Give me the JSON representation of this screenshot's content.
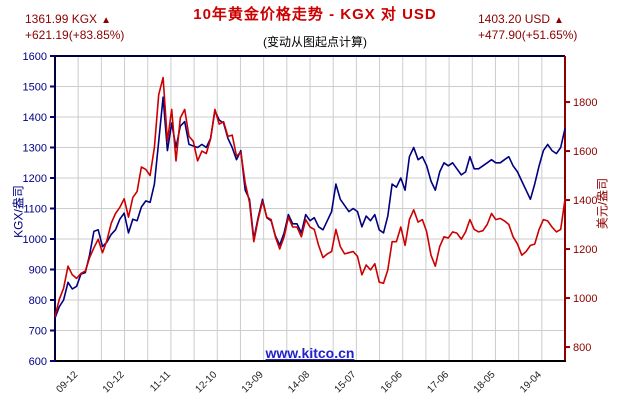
{
  "header": {
    "title": "10年黄金价格走势 - KGX 对 USD",
    "subtitle": "(变动从图起点计算)",
    "left_quote": {
      "price": "1361.99 KGX",
      "arrow": "▲",
      "change": "+621.19(+83.85%)"
    },
    "right_quote": {
      "price": "1403.20 USD",
      "arrow": "▲",
      "change": "+477.90(+51.65%)"
    }
  },
  "watermark": {
    "text": "www.kitco.cn"
  },
  "colors": {
    "title": "#cc0000",
    "quote_text": "#8b0000",
    "grid": "#cccccc",
    "frame_left_top": "#000040",
    "frame_right": "#8b0000",
    "frame_bottom": "#000000",
    "x_label": "#222222",
    "watermark": "#2222cc"
  },
  "chart_data": {
    "type": "line",
    "title": "10年黄金价格走势 - KGX 对 USD",
    "subtitle": "(变动从图起点计算)",
    "grid": true,
    "legend_position": "none",
    "x_tick_labels": [
      "09-12",
      "10-12",
      "11-11",
      "12-10",
      "13-09",
      "14-08",
      "15-07",
      "16-06",
      "17-06",
      "18-05",
      "19-04"
    ],
    "left_axis": {
      "label": "KGX/盎司",
      "min": 600,
      "max": 1600,
      "ticks": [
        600,
        700,
        800,
        900,
        1000,
        1100,
        1200,
        1300,
        1400,
        1500,
        1600
      ],
      "color": "#000080"
    },
    "right_axis": {
      "label": "美元/盎司",
      "min": 743,
      "max": 1988,
      "ticks": [
        800,
        1000,
        1200,
        1400,
        1600,
        1800
      ],
      "color": "#8b0000"
    },
    "series": [
      {
        "name": "KGX",
        "axis": "left",
        "color": "#000080",
        "start_value": 740.8,
        "end_value": 1361.99,
        "change": "+621.19(+83.85%)",
        "values": [
          740.8,
          778,
          800,
          858,
          836,
          845,
          885,
          890,
          948,
          1025,
          1030,
          975,
          990,
          1015,
          1030,
          1065,
          1085,
          1020,
          1065,
          1060,
          1105,
          1125,
          1120,
          1180,
          1320,
          1465,
          1290,
          1380,
          1300,
          1370,
          1385,
          1310,
          1305,
          1300,
          1310,
          1300,
          1330,
          1420,
          1390,
          1380,
          1330,
          1300,
          1260,
          1290,
          1160,
          1130,
          1000,
          1070,
          1130,
          1070,
          1060,
          1010,
          980,
          1020,
          1080,
          1050,
          1050,
          1020,
          1080,
          1060,
          1070,
          1040,
          1030,
          1060,
          1090,
          1180,
          1130,
          1110,
          1090,
          1100,
          1090,
          1040,
          1075,
          1060,
          1080,
          1030,
          1020,
          1075,
          1180,
          1170,
          1200,
          1160,
          1270,
          1300,
          1260,
          1270,
          1240,
          1190,
          1160,
          1220,
          1250,
          1240,
          1250,
          1230,
          1210,
          1220,
          1270,
          1230,
          1230,
          1240,
          1250,
          1260,
          1250,
          1250,
          1260,
          1270,
          1240,
          1220,
          1190,
          1160,
          1130,
          1180,
          1240,
          1290,
          1310,
          1290,
          1280,
          1300,
          1361.99
        ]
      },
      {
        "name": "USD",
        "axis": "right",
        "color": "#cc0000",
        "start_value": 925.3,
        "end_value": 1403.2,
        "change": "+477.90(+51.65%)",
        "values": [
          925.3,
          995,
          1040,
          1130,
          1095,
          1080,
          1100,
          1110,
          1165,
          1205,
          1240,
          1185,
          1235,
          1305,
          1345,
          1370,
          1405,
          1330,
          1410,
          1435,
          1535,
          1525,
          1500,
          1615,
          1830,
          1900,
          1640,
          1770,
          1560,
          1735,
          1770,
          1660,
          1640,
          1560,
          1600,
          1590,
          1650,
          1770,
          1710,
          1720,
          1660,
          1665,
          1580,
          1595,
          1470,
          1390,
          1230,
          1320,
          1395,
          1330,
          1320,
          1250,
          1200,
          1250,
          1330,
          1290,
          1290,
          1250,
          1320,
          1290,
          1280,
          1215,
          1165,
          1180,
          1190,
          1280,
          1210,
          1180,
          1185,
          1190,
          1170,
          1095,
          1135,
          1115,
          1140,
          1065,
          1060,
          1115,
          1230,
          1230,
          1290,
          1215,
          1320,
          1360,
          1310,
          1320,
          1270,
          1175,
          1130,
          1210,
          1250,
          1245,
          1270,
          1265,
          1240,
          1270,
          1320,
          1280,
          1270,
          1275,
          1300,
          1345,
          1320,
          1325,
          1315,
          1300,
          1250,
          1220,
          1175,
          1190,
          1215,
          1220,
          1280,
          1320,
          1315,
          1290,
          1270,
          1280,
          1403.2
        ]
      }
    ]
  }
}
